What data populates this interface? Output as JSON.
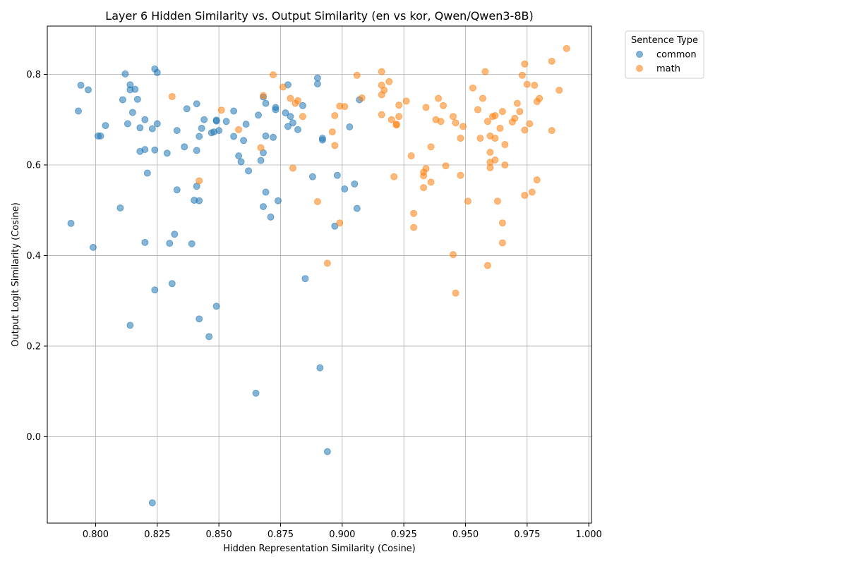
{
  "chart_data": {
    "type": "scatter",
    "title": "Layer 6 Hidden Similarity vs. Output Similarity (en vs kor, Qwen/Qwen3-8B)",
    "xlabel": "Hidden Representation Similarity (Cosine)",
    "ylabel": "Output Logit Similarity (Cosine)",
    "xlim": [
      0.7804,
      1.0011
    ],
    "ylim": [
      -0.1908,
      0.9066
    ],
    "xticks": [
      "0.800",
      "0.825",
      "0.850",
      "0.875",
      "0.900",
      "0.925",
      "0.950",
      "0.975",
      "1.000"
    ],
    "yticks": [
      "0.0",
      "0.2",
      "0.4",
      "0.6",
      "0.8"
    ],
    "grid": true,
    "legend": {
      "title": "Sentence Type",
      "position": "outside-top-right"
    },
    "series": [
      {
        "name": "common",
        "color": "#1f77b4",
        "points": [
          [
            0.79,
            0.471
          ],
          [
            0.793,
            0.719
          ],
          [
            0.794,
            0.776
          ],
          [
            0.797,
            0.766
          ],
          [
            0.799,
            0.418
          ],
          [
            0.801,
            0.664
          ],
          [
            0.802,
            0.664
          ],
          [
            0.804,
            0.687
          ],
          [
            0.81,
            0.505
          ],
          [
            0.811,
            0.744
          ],
          [
            0.812,
            0.801
          ],
          [
            0.813,
            0.691
          ],
          [
            0.814,
            0.777
          ],
          [
            0.814,
            0.766
          ],
          [
            0.815,
            0.716
          ],
          [
            0.816,
            0.767
          ],
          [
            0.817,
            0.745
          ],
          [
            0.818,
            0.682
          ],
          [
            0.818,
            0.63
          ],
          [
            0.82,
            0.634
          ],
          [
            0.82,
            0.7
          ],
          [
            0.82,
            0.429
          ],
          [
            0.821,
            0.582
          ],
          [
            0.823,
            0.68
          ],
          [
            0.824,
            0.812
          ],
          [
            0.824,
            0.633
          ],
          [
            0.825,
            0.804
          ],
          [
            0.825,
            0.691
          ],
          [
            0.814,
            0.246
          ],
          [
            0.824,
            0.324
          ],
          [
            0.823,
            -0.146
          ],
          [
            0.829,
            0.626
          ],
          [
            0.83,
            0.427
          ],
          [
            0.831,
            0.338
          ],
          [
            0.832,
            0.447
          ],
          [
            0.833,
            0.545
          ],
          [
            0.833,
            0.676
          ],
          [
            0.836,
            0.64
          ],
          [
            0.837,
            0.724
          ],
          [
            0.839,
            0.426
          ],
          [
            0.84,
            0.522
          ],
          [
            0.841,
            0.735
          ],
          [
            0.841,
            0.553
          ],
          [
            0.841,
            0.632
          ],
          [
            0.842,
            0.663
          ],
          [
            0.842,
            0.521
          ],
          [
            0.843,
            0.681
          ],
          [
            0.844,
            0.7
          ],
          [
            0.842,
            0.26
          ],
          [
            0.846,
            0.221
          ],
          [
            0.847,
            0.671
          ],
          [
            0.848,
            0.673
          ],
          [
            0.849,
            0.699
          ],
          [
            0.849,
            0.697
          ],
          [
            0.85,
            0.676
          ],
          [
            0.849,
            0.288
          ],
          [
            0.853,
            0.696
          ],
          [
            0.856,
            0.719
          ],
          [
            0.856,
            0.663
          ],
          [
            0.858,
            0.62
          ],
          [
            0.859,
            0.607
          ],
          [
            0.86,
            0.654
          ],
          [
            0.861,
            0.69
          ],
          [
            0.862,
            0.587
          ],
          [
            0.865,
            0.096
          ],
          [
            0.866,
            0.71
          ],
          [
            0.867,
            0.61
          ],
          [
            0.868,
            0.75
          ],
          [
            0.868,
            0.508
          ],
          [
            0.869,
            0.736
          ],
          [
            0.868,
            0.627
          ],
          [
            0.869,
            0.54
          ],
          [
            0.869,
            0.664
          ],
          [
            0.871,
            0.485
          ],
          [
            0.872,
            0.661
          ],
          [
            0.873,
            0.727
          ],
          [
            0.873,
            0.722
          ],
          [
            0.874,
            0.521
          ],
          [
            0.877,
            0.715
          ],
          [
            0.878,
            0.777
          ],
          [
            0.878,
            0.685
          ],
          [
            0.879,
            0.707
          ],
          [
            0.88,
            0.693
          ],
          [
            0.882,
            0.678
          ],
          [
            0.884,
            0.731
          ],
          [
            0.885,
            0.349
          ],
          [
            0.888,
            0.574
          ],
          [
            0.89,
            0.779
          ],
          [
            0.89,
            0.792
          ],
          [
            0.892,
            0.659
          ],
          [
            0.892,
            0.655
          ],
          [
            0.891,
            0.152
          ],
          [
            0.894,
            -0.033
          ],
          [
            0.897,
            0.465
          ],
          [
            0.898,
            0.577
          ],
          [
            0.901,
            0.547
          ],
          [
            0.903,
            0.684
          ],
          [
            0.905,
            0.558
          ],
          [
            0.906,
            0.504
          ],
          [
            0.907,
            0.744
          ]
        ]
      },
      {
        "name": "math",
        "color": "#ff7f0e",
        "points": [
          [
            0.831,
            0.751
          ],
          [
            0.842,
            0.565
          ],
          [
            0.851,
            0.721
          ],
          [
            0.858,
            0.678
          ],
          [
            0.867,
            0.638
          ],
          [
            0.868,
            0.753
          ],
          [
            0.872,
            0.799
          ],
          [
            0.876,
            0.772
          ],
          [
            0.879,
            0.747
          ],
          [
            0.88,
            0.593
          ],
          [
            0.881,
            0.736
          ],
          [
            0.882,
            0.742
          ],
          [
            0.884,
            0.707
          ],
          [
            0.89,
            0.519
          ],
          [
            0.894,
            0.383
          ],
          [
            0.896,
            0.673
          ],
          [
            0.897,
            0.709
          ],
          [
            0.897,
            0.643
          ],
          [
            0.899,
            0.73
          ],
          [
            0.899,
            0.472
          ],
          [
            0.901,
            0.729
          ],
          [
            0.906,
            0.798
          ],
          [
            0.908,
            0.748
          ],
          [
            0.916,
            0.806
          ],
          [
            0.916,
            0.776
          ],
          [
            0.917,
            0.765
          ],
          [
            0.916,
            0.755
          ],
          [
            0.916,
            0.711
          ],
          [
            0.919,
            0.784
          ],
          [
            0.92,
            0.7
          ],
          [
            0.921,
            0.574
          ],
          [
            0.922,
            0.688
          ],
          [
            0.922,
            0.69
          ],
          [
            0.923,
            0.732
          ],
          [
            0.923,
            0.707
          ],
          [
            0.926,
            0.741
          ],
          [
            0.928,
            0.62
          ],
          [
            0.929,
            0.493
          ],
          [
            0.929,
            0.462
          ],
          [
            0.933,
            0.55
          ],
          [
            0.933,
            0.576
          ],
          [
            0.933,
            0.584
          ],
          [
            0.934,
            0.592
          ],
          [
            0.934,
            0.727
          ],
          [
            0.936,
            0.64
          ],
          [
            0.936,
            0.562
          ],
          [
            0.938,
            0.7
          ],
          [
            0.939,
            0.747
          ],
          [
            0.94,
            0.696
          ],
          [
            0.941,
            0.731
          ],
          [
            0.942,
            0.598
          ],
          [
            0.945,
            0.707
          ],
          [
            0.945,
            0.402
          ],
          [
            0.946,
            0.693
          ],
          [
            0.946,
            0.317
          ],
          [
            0.948,
            0.577
          ],
          [
            0.948,
            0.659
          ],
          [
            0.949,
            0.685
          ],
          [
            0.951,
            0.52
          ],
          [
            0.953,
            0.77
          ],
          [
            0.955,
            0.722
          ],
          [
            0.956,
            0.659
          ],
          [
            0.957,
            0.747
          ],
          [
            0.958,
            0.806
          ],
          [
            0.959,
            0.696
          ],
          [
            0.959,
            0.378
          ],
          [
            0.96,
            0.664
          ],
          [
            0.96,
            0.628
          ],
          [
            0.96,
            0.606
          ],
          [
            0.96,
            0.594
          ],
          [
            0.961,
            0.707
          ],
          [
            0.962,
            0.709
          ],
          [
            0.962,
            0.659
          ],
          [
            0.962,
            0.611
          ],
          [
            0.963,
            0.52
          ],
          [
            0.964,
            0.681
          ],
          [
            0.965,
            0.718
          ],
          [
            0.965,
            0.428
          ],
          [
            0.965,
            0.472
          ],
          [
            0.966,
            0.6
          ],
          [
            0.966,
            0.645
          ],
          [
            0.969,
            0.695
          ],
          [
            0.97,
            0.703
          ],
          [
            0.971,
            0.736
          ],
          [
            0.972,
            0.718
          ],
          [
            0.973,
            0.798
          ],
          [
            0.974,
            0.823
          ],
          [
            0.974,
            0.677
          ],
          [
            0.974,
            0.533
          ],
          [
            0.975,
            0.778
          ],
          [
            0.976,
            0.691
          ],
          [
            0.977,
            0.54
          ],
          [
            0.978,
            0.776
          ],
          [
            0.979,
            0.74
          ],
          [
            0.979,
            0.567
          ],
          [
            0.98,
            0.747
          ],
          [
            0.985,
            0.829
          ],
          [
            0.985,
            0.676
          ],
          [
            0.988,
            0.765
          ],
          [
            0.991,
            0.857
          ]
        ]
      }
    ]
  }
}
